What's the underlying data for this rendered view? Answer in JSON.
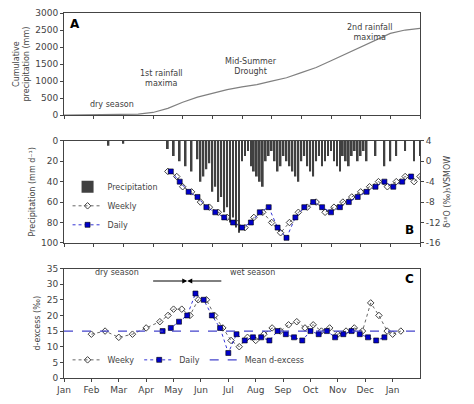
{
  "chart_data": [
    {
      "type": "line",
      "title": "A",
      "ylabel": "Cumulative\nprecipitation (mm)",
      "x": [
        0,
        0.5,
        1,
        1.5,
        2,
        2.5,
        3,
        3.5,
        4,
        4.5,
        5,
        5.5,
        6,
        6.5,
        7,
        7.5,
        8,
        8.5,
        9,
        9.5,
        10,
        10.5,
        11,
        11.5,
        12
      ],
      "values": [
        0,
        5,
        10,
        15,
        20,
        30,
        80,
        200,
        380,
        530,
        640,
        750,
        830,
        900,
        1000,
        1100,
        1250,
        1400,
        1600,
        1800,
        2000,
        2200,
        2400,
        2500,
        2550
      ],
      "color": "#808080",
      "xlim": [
        0,
        12
      ],
      "xticks": [
        0,
        1,
        2,
        3,
        4,
        5,
        6,
        7,
        8,
        9,
        10,
        11,
        12
      ],
      "ylim": [
        0,
        3000
      ],
      "yticks": [
        0,
        500,
        1000,
        1500,
        2000,
        2500,
        3000
      ],
      "tick_labels": "y",
      "grid": false,
      "annotations": [
        {
          "text": "dry season",
          "x": 0.8,
          "y": 130,
          "anchor": "left",
          "color": "#404040"
        },
        {
          "text": "1st rainfall\nmaxima",
          "x": 3.3,
          "y": 750,
          "anchor": "center",
          "color": "#404040"
        },
        {
          "text": "Mid-Summer\nDrought",
          "x": 6.3,
          "y": 1100,
          "anchor": "center",
          "color": "#404040"
        },
        {
          "text": "2nd rainfall\nmaxima",
          "x": 10.3,
          "y": 2100,
          "anchor": "center",
          "color": "#404040"
        }
      ]
    },
    {
      "type": "bar",
      "title": "B",
      "ylabel": "Precipitation (mm d⁻¹)",
      "y2label": "δ¹⁸O (‰)₅VSMOW",
      "xlim": [
        0,
        12
      ],
      "xticks": [
        0,
        1,
        2,
        3,
        4,
        5,
        6,
        7,
        8,
        9,
        10,
        11,
        12
      ],
      "ylim": [
        100,
        0
      ],
      "yticks": [
        0,
        20,
        40,
        60,
        80,
        100
      ],
      "y2lim": [
        -16,
        4
      ],
      "y2ticks": [
        4,
        0,
        -4,
        -8,
        -12,
        -16
      ],
      "tick_labels": "y",
      "grid": false,
      "legend": "lower left",
      "series": [
        {
          "name": "Precipitation",
          "type": "bar",
          "color": "#404040",
          "x": [
            1.5,
            2.0,
            3.5,
            3.7,
            3.9,
            4.1,
            4.3,
            4.5,
            4.6,
            4.7,
            4.8,
            4.9,
            5.0,
            5.1,
            5.2,
            5.3,
            5.4,
            5.5,
            5.6,
            5.7,
            5.8,
            5.9,
            6.0,
            6.1,
            6.2,
            6.3,
            6.4,
            6.5,
            6.6,
            6.7,
            6.8,
            6.9,
            7.0,
            7.1,
            7.2,
            7.3,
            7.4,
            7.5,
            7.6,
            7.7,
            7.8,
            7.9,
            8.0,
            8.1,
            8.2,
            8.3,
            8.4,
            8.5,
            8.6,
            8.7,
            8.8,
            8.9,
            9.0,
            9.1,
            9.2,
            9.3,
            9.4,
            9.5,
            9.6,
            9.7,
            9.8,
            9.9,
            10.0,
            10.1,
            10.2,
            10.5,
            10.8,
            11.0,
            11.2,
            11.5,
            11.8,
            12.0
          ],
          "values": [
            5,
            3,
            8,
            15,
            20,
            25,
            30,
            18,
            40,
            35,
            28,
            22,
            50,
            45,
            60,
            55,
            70,
            65,
            80,
            75,
            85,
            90,
            20,
            15,
            10,
            25,
            30,
            35,
            40,
            45,
            20,
            15,
            10,
            20,
            30,
            25,
            15,
            20,
            25,
            30,
            35,
            40,
            20,
            15,
            25,
            30,
            35,
            20,
            15,
            25,
            20,
            15,
            10,
            20,
            25,
            30,
            15,
            20,
            25,
            15,
            10,
            20,
            15,
            10,
            20,
            15,
            25,
            20,
            15,
            10,
            20,
            15
          ]
        },
        {
          "name": "Weekly",
          "type": "line",
          "axis": "y2",
          "color": "#404040",
          "marker": "diamond-open",
          "line_style": "dotted",
          "x": [
            3.5,
            3.8,
            4.0,
            4.3,
            4.6,
            4.9,
            5.2,
            5.5,
            5.8,
            6.1,
            6.4,
            6.7,
            7.0,
            7.3,
            7.6,
            7.9,
            8.2,
            8.5,
            8.8,
            9.1,
            9.4,
            9.7,
            10.0,
            10.3,
            10.6,
            10.9,
            11.2,
            11.5,
            11.8,
            12.0
          ],
          "values": [
            -2,
            -3,
            -5,
            -6,
            -8,
            -9,
            -10,
            -11,
            -12,
            -13,
            -11,
            -10,
            -12,
            -14,
            -12,
            -10,
            -9,
            -8,
            -10,
            -9,
            -8,
            -7,
            -6,
            -5,
            -4,
            -5,
            -4,
            -3,
            -4,
            -3
          ]
        },
        {
          "name": "Daily",
          "type": "line",
          "axis": "y2",
          "color": "#0000cc",
          "marker": "square",
          "line_style": "dotted",
          "x": [
            3.6,
            3.9,
            4.2,
            4.5,
            4.8,
            5.1,
            5.4,
            5.7,
            6.0,
            6.3,
            6.6,
            6.9,
            7.2,
            7.5,
            7.8,
            8.1,
            8.4,
            8.7,
            9.0,
            9.3,
            9.6,
            9.9,
            10.2,
            10.5,
            10.8,
            11.1,
            11.4,
            11.7
          ],
          "values": [
            -2,
            -4,
            -6,
            -7,
            -9,
            -10,
            -11,
            -12,
            -13,
            -12,
            -10,
            -9,
            -13,
            -15,
            -11,
            -9,
            -8,
            -9,
            -10,
            -9,
            -8,
            -7,
            -6,
            -5,
            -4,
            -5,
            -4,
            -3
          ]
        }
      ]
    },
    {
      "type": "line",
      "title": "C",
      "ylabel": "d-excess (‰)",
      "xlim": [
        0,
        13
      ],
      "xticks": [
        {
          "value": 0,
          "label": "Jan"
        },
        {
          "value": 1,
          "label": "Feb"
        },
        {
          "value": 2,
          "label": "Mar"
        },
        {
          "value": 3,
          "label": "Apr"
        },
        {
          "value": 4,
          "label": "May"
        },
        {
          "value": 5,
          "label": "Jun"
        },
        {
          "value": 6,
          "label": "Jul"
        },
        {
          "value": 7,
          "label": "Aug"
        },
        {
          "value": 8,
          "label": "Sep"
        },
        {
          "value": 9,
          "label": "Oct"
        },
        {
          "value": 10,
          "label": "Nov"
        },
        {
          "value": 11,
          "label": "Dec"
        },
        {
          "value": 12,
          "label": "Jan"
        }
      ],
      "ylim": [
        0,
        35
      ],
      "yticks": [
        0,
        5,
        10,
        15,
        20,
        25,
        30,
        35
      ],
      "grid": false,
      "legend": "lower left",
      "series": [
        {
          "name": "Weeky",
          "type": "line",
          "color": "#404040",
          "marker": "diamond-open",
          "line_style": "dotted",
          "x": [
            1.0,
            1.5,
            2.0,
            2.5,
            3.0,
            3.5,
            3.8,
            4.0,
            4.3,
            4.6,
            4.9,
            5.2,
            5.5,
            5.8,
            6.1,
            6.4,
            6.7,
            7.0,
            7.3,
            7.6,
            7.9,
            8.2,
            8.5,
            8.8,
            9.1,
            9.4,
            9.7,
            10.0,
            10.3,
            10.6,
            10.9,
            11.2,
            11.5,
            11.8,
            12.0,
            12.3
          ],
          "values": [
            14,
            15,
            13,
            14,
            16,
            18,
            20,
            22,
            22,
            20,
            25,
            25,
            20,
            16,
            12,
            10,
            13,
            12,
            14,
            16,
            15,
            17,
            18,
            16,
            17,
            15,
            16,
            14,
            15,
            16,
            15,
            24,
            20,
            15,
            14,
            15
          ]
        },
        {
          "name": "Daily",
          "type": "line",
          "color": "#0000cc",
          "marker": "square",
          "line_style": "dotted",
          "x": [
            3.6,
            3.9,
            4.2,
            4.5,
            4.8,
            5.1,
            5.4,
            5.7,
            6.0,
            6.3,
            6.6,
            6.9,
            7.2,
            7.5,
            7.8,
            8.1,
            8.4,
            8.7,
            9.0,
            9.3,
            9.6,
            9.9,
            10.2,
            10.5,
            10.8,
            11.1,
            11.4,
            11.7
          ],
          "values": [
            15,
            16,
            18,
            20,
            27,
            25,
            20,
            16,
            8,
            14,
            12,
            13,
            13,
            12,
            15,
            14,
            13,
            12,
            15,
            14,
            15,
            13,
            14,
            15,
            14,
            13,
            12,
            13
          ]
        },
        {
          "name": "Mean d-excess",
          "type": "hline",
          "color": "#4444cc",
          "line_style": "dashed",
          "values": [
            15
          ]
        }
      ],
      "annotations": [
        {
          "text": "dry season",
          "x": 2.8,
          "y": 31.5,
          "anchor": "right",
          "arrow": {
            "from": 3.2,
            "to": 4.5,
            "y": 31
          }
        },
        {
          "text": "wet season",
          "x": 6.0,
          "y": 31.5,
          "anchor": "left",
          "arrow": {
            "from": 5.8,
            "to": 4.5,
            "y": 31
          }
        }
      ]
    }
  ]
}
